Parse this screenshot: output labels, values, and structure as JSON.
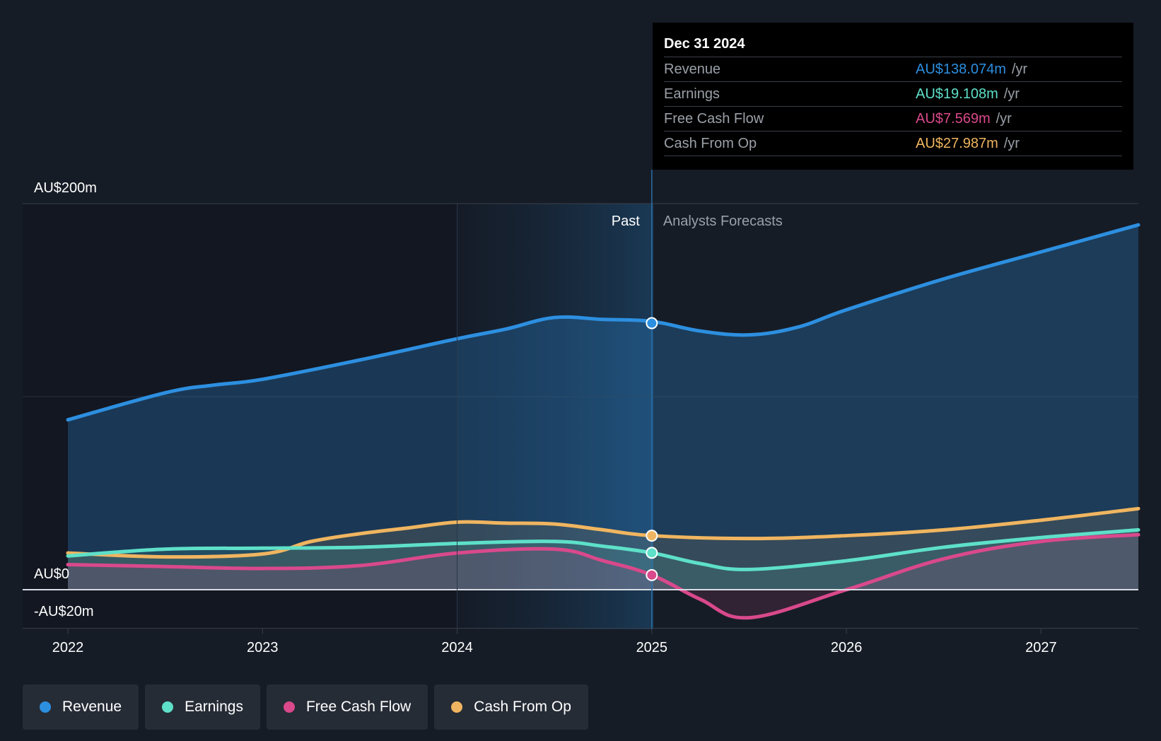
{
  "colors": {
    "revenue": "#2d8fe0",
    "earnings": "#5ee0c9",
    "free_cash_flow": "#d9498b",
    "cash_from_op": "#f0b560",
    "background": "#161c26",
    "text": "#ffffff",
    "muted": "#9aa0a8"
  },
  "chart_data": {
    "type": "line",
    "x_domain": [
      2022,
      2027.5
    ],
    "ylim": [
      -20,
      200
    ],
    "y_ticks": [
      {
        "value": 200,
        "label": "AU$200m"
      },
      {
        "value": 0,
        "label": "AU$0"
      },
      {
        "value": -20,
        "label": "-AU$20m"
      }
    ],
    "x_ticks": [
      {
        "value": 2022,
        "label": "2022"
      },
      {
        "value": 2023,
        "label": "2023"
      },
      {
        "value": 2024,
        "label": "2024"
      },
      {
        "value": 2025,
        "label": "2025"
      },
      {
        "value": 2026,
        "label": "2026"
      },
      {
        "value": 2027,
        "label": "2027"
      }
    ],
    "divider_x": 2025,
    "highlight_start_x": 2024,
    "past_label": "Past",
    "forecast_label": "Analysts Forecasts",
    "series": [
      {
        "key": "revenue",
        "name": "Revenue",
        "x": [
          2022,
          2022.5,
          2022.75,
          2023,
          2023.5,
          2024,
          2024.25,
          2024.5,
          2024.75,
          2025,
          2025.25,
          2025.5,
          2025.75,
          2026,
          2026.5,
          2027,
          2027.5
        ],
        "values": [
          88,
          102,
          106,
          109,
          119,
          130,
          135,
          141,
          140,
          139,
          134,
          132,
          136,
          145,
          161,
          175,
          189
        ]
      },
      {
        "key": "cash_from_op",
        "name": "Cash From Op",
        "x": [
          2022,
          2022.5,
          2023,
          2023.25,
          2023.5,
          2023.75,
          2024,
          2024.25,
          2024.5,
          2024.75,
          2025,
          2025.5,
          2026,
          2026.5,
          2027,
          2027.5
        ],
        "values": [
          19,
          17,
          18.5,
          25,
          29,
          32,
          35,
          34.5,
          34,
          31,
          28,
          26.5,
          28,
          31,
          36,
          42
        ]
      },
      {
        "key": "earnings",
        "name": "Earnings",
        "x": [
          2022,
          2022.5,
          2023,
          2023.5,
          2024,
          2024.5,
          2024.75,
          2025,
          2025.25,
          2025.5,
          2026,
          2026.5,
          2027,
          2027.5
        ],
        "values": [
          17.5,
          21,
          21.5,
          22,
          24,
          25,
          22.5,
          19.1,
          13.5,
          10.5,
          15,
          22,
          27,
          31
        ]
      },
      {
        "key": "free_cash_flow",
        "name": "Free Cash Flow",
        "x": [
          2022,
          2022.5,
          2023,
          2023.5,
          2024,
          2024.5,
          2024.75,
          2025,
          2025.25,
          2025.5,
          2026,
          2026.5,
          2027,
          2027.5
        ],
        "values": [
          13,
          12,
          11,
          12.5,
          19,
          21,
          15,
          7.6,
          -5,
          -14.5,
          0,
          16,
          25,
          28.5
        ]
      }
    ],
    "markers": [
      {
        "series": "revenue",
        "x": 2025,
        "y": 138.074
      },
      {
        "series": "cash_from_op",
        "x": 2025,
        "y": 27.987
      },
      {
        "series": "earnings",
        "x": 2025,
        "y": 19.108
      },
      {
        "series": "free_cash_flow",
        "x": 2025,
        "y": 7.569
      }
    ]
  },
  "tooltip": {
    "date": "Dec 31 2024",
    "rows": [
      {
        "name": "Revenue",
        "value": "AU$138.074m",
        "unit": "/yr"
      },
      {
        "name": "Earnings",
        "value": "AU$19.108m",
        "unit": "/yr"
      },
      {
        "name": "Free Cash Flow",
        "value": "AU$7.569m",
        "unit": "/yr"
      },
      {
        "name": "Cash From Op",
        "value": "AU$27.987m",
        "unit": "/yr"
      }
    ]
  },
  "legend": {
    "items": [
      {
        "key": "revenue",
        "label": "Revenue"
      },
      {
        "key": "earnings",
        "label": "Earnings"
      },
      {
        "key": "free_cash_flow",
        "label": "Free Cash Flow"
      },
      {
        "key": "cash_from_op",
        "label": "Cash From Op"
      }
    ]
  }
}
